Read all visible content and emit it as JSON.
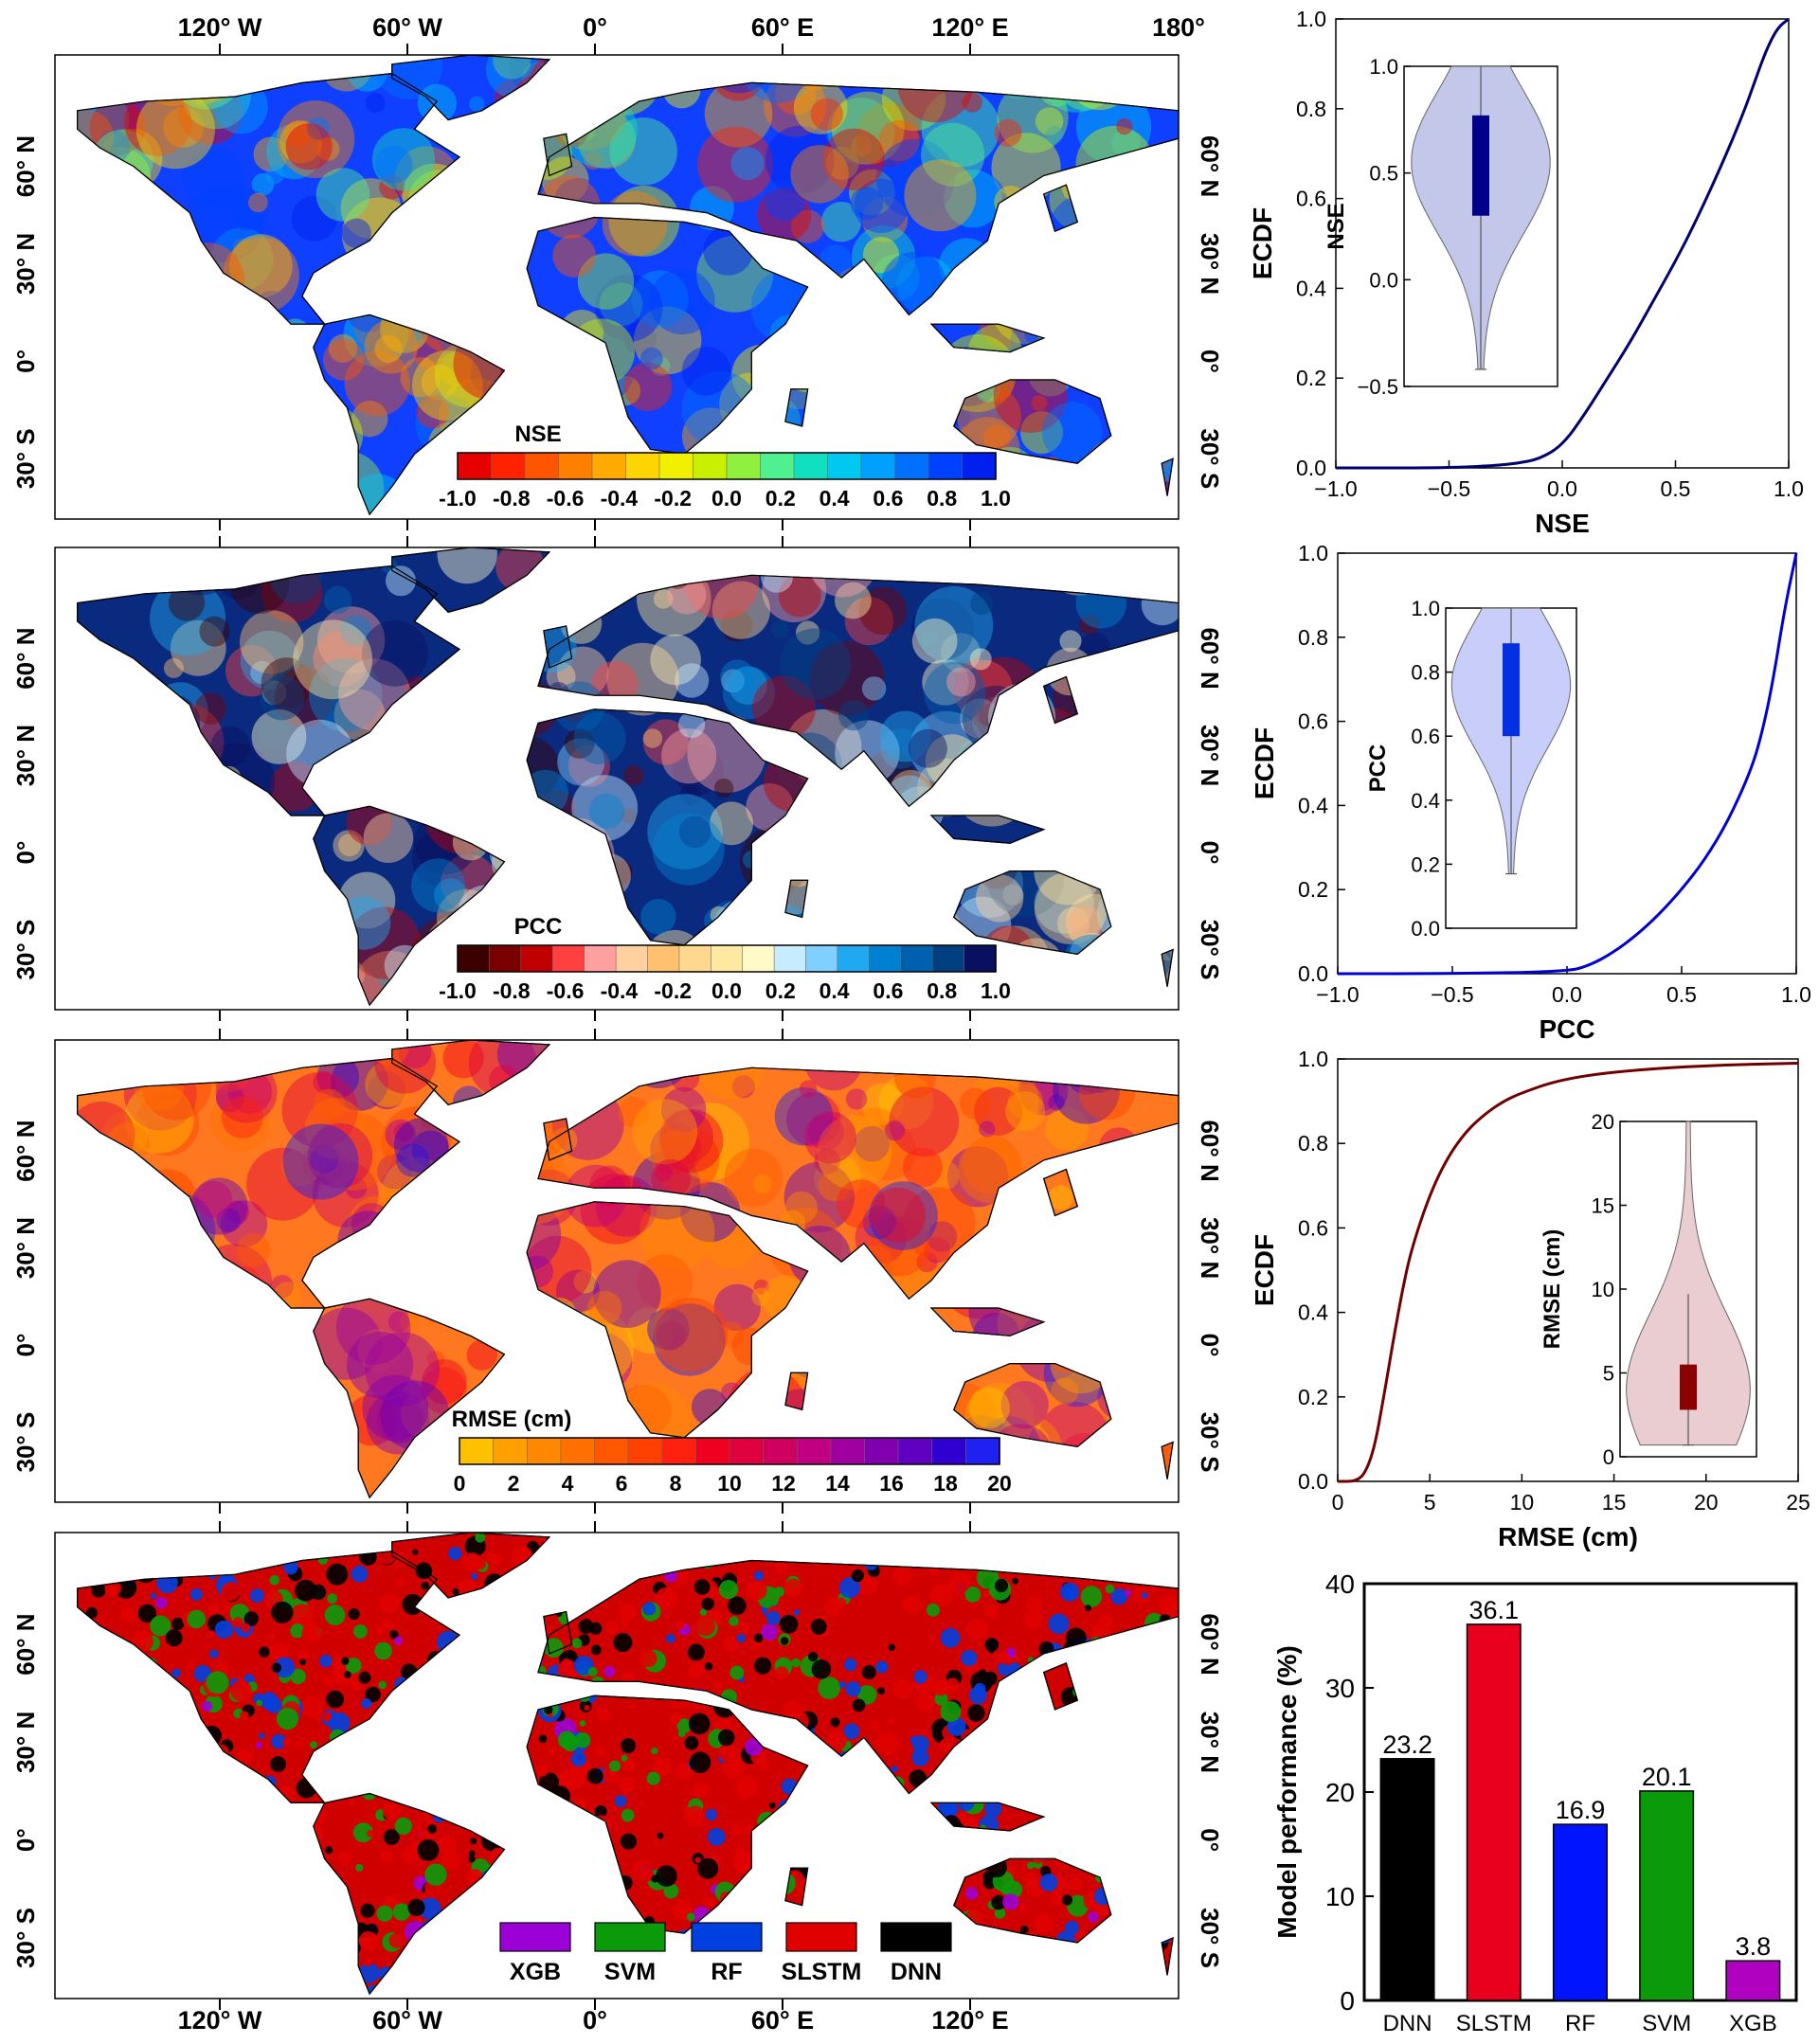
{
  "maps": {
    "top_lon_labels": [
      "120° W",
      "60° W",
      "0°",
      "60° E",
      "120° E",
      "180°"
    ],
    "bottom_lon_labels": [
      "120° W",
      "60° W",
      "0°",
      "60° E",
      "120° E"
    ],
    "lat_labels": [
      "60° N",
      "30° N",
      "0°",
      "30° S"
    ],
    "panels": [
      {
        "id": "nse",
        "colorbar_title": "NSE",
        "colorbar_ticks": [
          "-1.0",
          "-0.8",
          "-0.6",
          "-0.4",
          "-0.2",
          "0.0",
          "0.2",
          "0.4",
          "0.6",
          "0.8",
          "1.0"
        ],
        "colors": [
          "#e60000",
          "#ff2200",
          "#ff5500",
          "#ff8000",
          "#ffaa00",
          "#ffd500",
          "#f0f000",
          "#c8f000",
          "#90f040",
          "#50f090",
          "#10e0c0",
          "#00c8f0",
          "#00a0ff",
          "#0070ff",
          "#0040ff",
          "#0020f0"
        ]
      },
      {
        "id": "pcc",
        "colorbar_title": "PCC",
        "colorbar_ticks": [
          "-1.0",
          "-0.8",
          "-0.6",
          "-0.4",
          "-0.2",
          "0.0",
          "0.2",
          "0.4",
          "0.6",
          "0.8",
          "1.0"
        ],
        "colors": [
          "#3c0000",
          "#7a0000",
          "#c00000",
          "#ff4040",
          "#ffa0a0",
          "#ffd0a0",
          "#ffc070",
          "#ffd890",
          "#ffe8a0",
          "#fffac8",
          "#c8ecff",
          "#80d0ff",
          "#20a8f0",
          "#0080d0",
          "#0060b0",
          "#004080",
          "#0a1060"
        ]
      },
      {
        "id": "rmse",
        "colorbar_title": "RMSE (cm)",
        "colorbar_ticks": [
          "0",
          "2",
          "4",
          "6",
          "8",
          "10",
          "12",
          "14",
          "16",
          "18",
          "20"
        ],
        "colors": [
          "#ffc000",
          "#ffa000",
          "#ff8800",
          "#ff7000",
          "#ff5800",
          "#ff4000",
          "#ff2010",
          "#f00020",
          "#e00040",
          "#d00060",
          "#c00080",
          "#a000a0",
          "#8000b0",
          "#6000c0",
          "#3000d0",
          "#2020f0"
        ]
      },
      {
        "id": "best_model",
        "legend": [
          {
            "label": "XGB",
            "color": "#9b00d6"
          },
          {
            "label": "SVM",
            "color": "#0a9a0a"
          },
          {
            "label": "RF",
            "color": "#0040e0"
          },
          {
            "label": "SLSTM",
            "color": "#e00000"
          },
          {
            "label": "DNN",
            "color": "#000000"
          }
        ]
      }
    ]
  },
  "chart_data": [
    {
      "type": "line",
      "ylabel": "ECDF",
      "xlabel": "NSE",
      "xlim": [
        -1.0,
        1.0
      ],
      "ylim": [
        0.0,
        1.0
      ],
      "xticks": [
        "−1.0",
        "−0.5",
        "0.0",
        "0.5",
        "1.0"
      ],
      "yticks": [
        "0.0",
        "0.2",
        "0.4",
        "0.6",
        "0.8",
        "1.0"
      ],
      "color": "#00006e",
      "x": [
        -1.0,
        -0.5,
        -0.3,
        -0.2,
        -0.1,
        0.0,
        0.1,
        0.2,
        0.3,
        0.4,
        0.5,
        0.6,
        0.7,
        0.8,
        0.85,
        0.9,
        0.95,
        1.0
      ],
      "y": [
        0.0,
        0.0,
        0.005,
        0.01,
        0.02,
        0.05,
        0.12,
        0.2,
        0.28,
        0.37,
        0.46,
        0.56,
        0.67,
        0.79,
        0.86,
        0.93,
        0.98,
        1.0
      ],
      "inset": {
        "type": "violin",
        "ylabel": "NSE",
        "ylim": [
          -0.5,
          1.0
        ],
        "yticks": [
          "−0.5",
          "0.0",
          "0.5",
          "1.0"
        ],
        "q1": 0.3,
        "median": 0.55,
        "q3": 0.77,
        "whisker_low": -0.42,
        "whisker_high": 1.0,
        "fill": "#b8bde6",
        "box": "#00008b"
      }
    },
    {
      "type": "line",
      "ylabel": "ECDF",
      "xlabel": "PCC",
      "xlim": [
        -1.0,
        1.0
      ],
      "ylim": [
        0.0,
        1.0
      ],
      "xticks": [
        "−1.0",
        "−0.5",
        "0.0",
        "0.5",
        "1.0"
      ],
      "yticks": [
        "0.0",
        "0.2",
        "0.4",
        "0.6",
        "0.8",
        "1.0"
      ],
      "color": "#0000d0",
      "x": [
        -1.0,
        -0.5,
        0.0,
        0.1,
        0.2,
        0.3,
        0.4,
        0.5,
        0.6,
        0.7,
        0.8,
        0.85,
        0.9,
        0.95,
        1.0
      ],
      "y": [
        0.0,
        0.0,
        0.005,
        0.02,
        0.05,
        0.09,
        0.14,
        0.2,
        0.27,
        0.36,
        0.48,
        0.57,
        0.7,
        0.87,
        1.0
      ],
      "inset": {
        "type": "violin",
        "ylabel": "PCC",
        "ylim": [
          0.0,
          1.0
        ],
        "yticks": [
          "0.0",
          "0.2",
          "0.4",
          "0.6",
          "0.8",
          "1.0"
        ],
        "q1": 0.6,
        "median": 0.76,
        "q3": 0.89,
        "whisker_low": 0.17,
        "whisker_high": 1.0,
        "fill": "#c0c4f8",
        "box": "#0030e0"
      }
    },
    {
      "type": "line",
      "ylabel": "ECDF",
      "xlabel": "RMSE (cm)",
      "xlim": [
        0,
        25
      ],
      "ylim": [
        0.0,
        1.0
      ],
      "xticks": [
        "0",
        "5",
        "10",
        "15",
        "20",
        "25"
      ],
      "yticks": [
        "0.0",
        "0.2",
        "0.4",
        "0.6",
        "0.8",
        "1.0"
      ],
      "color": "#700000",
      "x": [
        0,
        1,
        1.5,
        2,
        2.5,
        3,
        3.5,
        4,
        5,
        6,
        7,
        8,
        9,
        10,
        12,
        15,
        20,
        25
      ],
      "y": [
        0.0,
        0.0,
        0.02,
        0.08,
        0.2,
        0.33,
        0.45,
        0.55,
        0.68,
        0.77,
        0.83,
        0.87,
        0.9,
        0.92,
        0.95,
        0.97,
        0.985,
        0.99
      ],
      "inset": {
        "type": "violin",
        "ylabel": "RMSE (cm)",
        "ylim": [
          0,
          20
        ],
        "yticks": [
          "0",
          "5",
          "10",
          "15",
          "20"
        ],
        "q1": 2.8,
        "median": 4.0,
        "q3": 5.5,
        "whisker_low": 0.7,
        "whisker_high": 9.7,
        "fill": "#e6c4c8",
        "box": "#8b0000"
      }
    },
    {
      "type": "bar",
      "ylabel": "Model performance (%)",
      "ylim": [
        0,
        40
      ],
      "yticks": [
        "0",
        "10",
        "20",
        "30",
        "40"
      ],
      "categories": [
        "DNN",
        "SLSTM",
        "RF",
        "SVM",
        "XGB"
      ],
      "values": [
        23.2,
        36.1,
        16.9,
        20.1,
        3.8
      ],
      "value_labels": [
        "23.2",
        "36.1",
        "16.9",
        "20.1",
        "3.8"
      ],
      "colors": [
        "#000000",
        "#e8001e",
        "#0014ff",
        "#0a9a0a",
        "#b000c0"
      ]
    }
  ]
}
